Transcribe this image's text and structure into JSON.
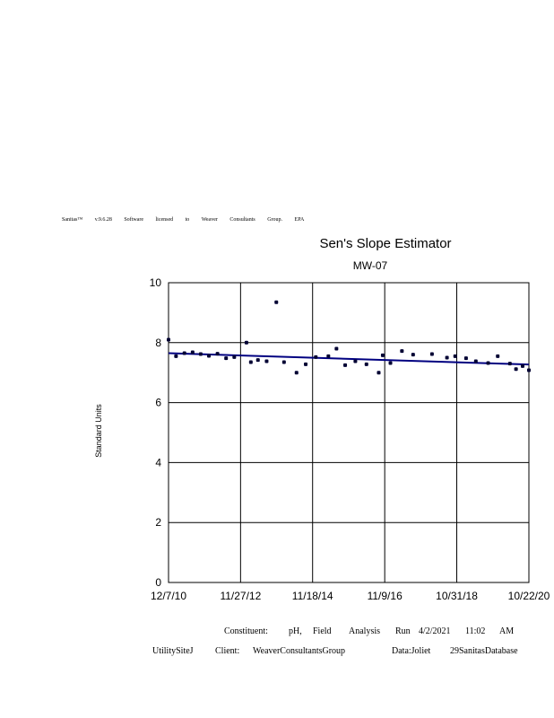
{
  "license_text": "Sanitas™ v.9.6.28 Software licensed to Weaver Consultants Group. EPA",
  "chart_data": {
    "type": "scatter",
    "title": "Sen's Slope Estimator",
    "subtitle": "MW-07",
    "ylabel": "Standard Units",
    "xlabel": "",
    "ylim": [
      0,
      10
    ],
    "yticks": [
      "0",
      "2",
      "4",
      "6",
      "8",
      "10"
    ],
    "xlim": [
      "2010-12-07",
      "2020-10-22"
    ],
    "xticks": [
      {
        "date": "2010-12-07",
        "label": "12/7/10"
      },
      {
        "date": "2012-11-27",
        "label": "11/27/12"
      },
      {
        "date": "2014-11-18",
        "label": "11/18/14"
      },
      {
        "date": "2016-11-09",
        "label": "11/9/16"
      },
      {
        "date": "2018-10-31",
        "label": "10/31/18"
      },
      {
        "date": "2020-10-22",
        "label": "10/22/20"
      }
    ],
    "grid": true,
    "point_color": "#000033",
    "trend_color": "#000080",
    "trend_line": {
      "start": [
        "2010-12-07",
        7.65
      ],
      "end": [
        "2020-10-22",
        7.27
      ]
    },
    "points": [
      [
        "2010-12-07",
        8.1
      ],
      [
        "2011-02-20",
        7.55
      ],
      [
        "2011-05-15",
        7.65
      ],
      [
        "2011-08-05",
        7.68
      ],
      [
        "2011-10-25",
        7.62
      ],
      [
        "2012-01-15",
        7.56
      ],
      [
        "2012-04-10",
        7.63
      ],
      [
        "2012-07-05",
        7.48
      ],
      [
        "2012-09-25",
        7.52
      ],
      [
        "2013-01-25",
        8.0
      ],
      [
        "2013-03-10",
        7.35
      ],
      [
        "2013-05-20",
        7.42
      ],
      [
        "2013-08-15",
        7.38
      ],
      [
        "2013-11-20",
        9.35
      ],
      [
        "2014-02-05",
        7.35
      ],
      [
        "2014-06-10",
        7.0
      ],
      [
        "2014-09-10",
        7.28
      ],
      [
        "2014-12-20",
        7.52
      ],
      [
        "2015-04-25",
        7.55
      ],
      [
        "2015-07-15",
        7.8
      ],
      [
        "2015-10-10",
        7.25
      ],
      [
        "2016-01-20",
        7.38
      ],
      [
        "2016-05-10",
        7.28
      ],
      [
        "2016-09-10",
        7.0
      ],
      [
        "2016-10-20",
        7.58
      ],
      [
        "2017-01-05",
        7.32
      ],
      [
        "2017-04-30",
        7.72
      ],
      [
        "2017-08-20",
        7.6
      ],
      [
        "2018-02-25",
        7.62
      ],
      [
        "2018-07-25",
        7.5
      ],
      [
        "2018-10-15",
        7.55
      ],
      [
        "2019-02-01",
        7.48
      ],
      [
        "2019-05-10",
        7.38
      ],
      [
        "2019-09-10",
        7.32
      ],
      [
        "2019-12-15",
        7.55
      ],
      [
        "2020-04-15",
        7.3
      ],
      [
        "2020-06-15",
        7.12
      ],
      [
        "2020-08-20",
        7.22
      ],
      [
        "2020-10-22",
        7.08
      ]
    ]
  },
  "footer": {
    "line1": [
      "Constituent:",
      "pH,",
      "Field",
      "Analysis",
      "Run",
      "4/2/2021",
      "11:02",
      "AM"
    ],
    "line2": [
      "UtilitySiteJ",
      "Client:",
      "WeaverConsultantsGroup",
      "Data:Joliet",
      "29SanitasDatabase"
    ]
  }
}
